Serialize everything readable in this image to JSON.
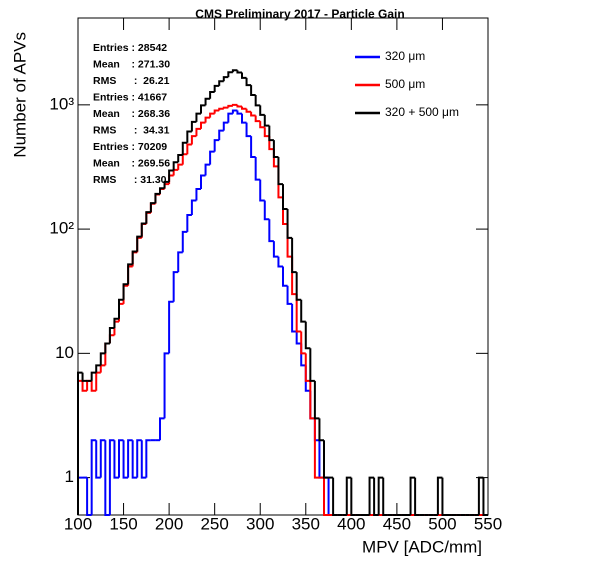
{
  "chart_data": {
    "type": "histogram",
    "title": "CMS Preliminary 2017  -  Particle Gain",
    "xlabel": "MPV [ADC/mm]",
    "ylabel": "Number of APVs",
    "log_y": true,
    "xlim": [
      100,
      550
    ],
    "ylim": [
      0.5,
      5000
    ],
    "xticks": [
      100,
      150,
      200,
      250,
      300,
      350,
      400,
      450,
      500,
      550
    ],
    "yticks": [
      1,
      10,
      {
        "value": 100,
        "label": "10²"
      },
      {
        "value": 1000,
        "label": "10³"
      }
    ],
    "bins": [
      100,
      105,
      110,
      115,
      120,
      125,
      130,
      135,
      140,
      145,
      150,
      155,
      160,
      165,
      170,
      175,
      180,
      185,
      190,
      195,
      200,
      205,
      210,
      215,
      220,
      225,
      230,
      235,
      240,
      245,
      250,
      255,
      260,
      265,
      270,
      275,
      280,
      285,
      290,
      295,
      300,
      305,
      310,
      315,
      320,
      325,
      330,
      335,
      340,
      345,
      350,
      355,
      360,
      365,
      370,
      375,
      380,
      385,
      390,
      395,
      400,
      405,
      410,
      415,
      420,
      425,
      430,
      435,
      440,
      445,
      450,
      455,
      460,
      465,
      470,
      475,
      480,
      485,
      490,
      495,
      500,
      505,
      510,
      515,
      520,
      525,
      530,
      535,
      540,
      545,
      550
    ],
    "series": [
      {
        "name": "320 μm",
        "color": "#0000ff",
        "values": [
          1,
          1,
          0,
          2,
          1,
          2,
          0,
          2,
          1,
          2,
          1,
          2,
          1,
          2,
          1,
          2,
          2,
          2,
          3,
          10,
          26,
          45,
          65,
          95,
          130,
          170,
          210,
          270,
          330,
          420,
          520,
          620,
          720,
          850,
          900,
          850,
          720,
          560,
          380,
          250,
          170,
          120,
          80,
          60,
          50,
          35,
          25,
          15,
          12,
          8,
          5,
          3,
          2,
          1,
          1,
          0,
          0,
          0,
          0,
          0,
          0,
          0,
          0,
          0,
          0,
          0,
          0,
          0,
          0,
          0,
          0,
          0,
          0,
          0,
          0,
          0,
          0,
          0,
          0,
          0,
          0,
          0,
          0,
          0,
          0,
          0,
          0,
          0,
          0,
          0
        ]
      },
      {
        "name": "500 μm",
        "color": "#ff0000",
        "values": [
          6,
          5,
          6,
          5,
          7,
          8,
          12,
          14,
          18,
          25,
          35,
          50,
          65,
          85,
          110,
          135,
          160,
          190,
          210,
          230,
          270,
          300,
          330,
          400,
          480,
          560,
          640,
          720,
          790,
          850,
          900,
          930,
          950,
          980,
          1000,
          970,
          930,
          880,
          820,
          740,
          660,
          560,
          440,
          320,
          180,
          110,
          60,
          30,
          15,
          10,
          6,
          3,
          1,
          1,
          0,
          0,
          0,
          0,
          0,
          0,
          0,
          0,
          0,
          0,
          0,
          0,
          0,
          0,
          0,
          0,
          0,
          0,
          0,
          0,
          0,
          0,
          0,
          0,
          0,
          0,
          0,
          0,
          0,
          0,
          0,
          0,
          0,
          0,
          0,
          0
        ]
      },
      {
        "name": "320 + 500  μm",
        "color": "#000000",
        "values": [
          7,
          6,
          6,
          7,
          8,
          10,
          12,
          16,
          19,
          27,
          36,
          52,
          66,
          87,
          111,
          137,
          162,
          192,
          213,
          240,
          296,
          345,
          395,
          495,
          610,
          730,
          850,
          990,
          1120,
          1270,
          1420,
          1550,
          1670,
          1830,
          1900,
          1820,
          1650,
          1440,
          1200,
          990,
          830,
          680,
          520,
          380,
          230,
          145,
          85,
          45,
          27,
          18,
          11,
          6,
          3,
          2,
          1,
          1,
          0,
          0,
          0,
          1,
          0,
          0,
          0,
          0,
          1,
          0,
          1,
          0,
          0,
          0,
          0,
          0,
          0,
          1,
          0,
          0,
          0,
          0,
          0,
          1,
          0,
          0,
          0,
          0,
          0,
          0,
          0,
          0,
          1,
          0
        ]
      }
    ],
    "stats": [
      {
        "text": "Entries : 28542",
        "color": "#0000ff"
      },
      {
        "text": "Mean    : 271.30",
        "color": "#0000ff"
      },
      {
        "text": "RMS      :  26.21",
        "color": "#0000ff"
      },
      {
        "text": "Entries : 41667",
        "color": "#ff0000"
      },
      {
        "text": "Mean    : 268.36",
        "color": "#ff0000"
      },
      {
        "text": "RMS      :  34.31",
        "color": "#ff0000"
      },
      {
        "text": "Entries : 70209",
        "color": "#000000"
      },
      {
        "text": "Mean    : 269.56",
        "color": "#000000"
      },
      {
        "text": "RMS      : 31.30",
        "color": "#000000"
      }
    ]
  }
}
